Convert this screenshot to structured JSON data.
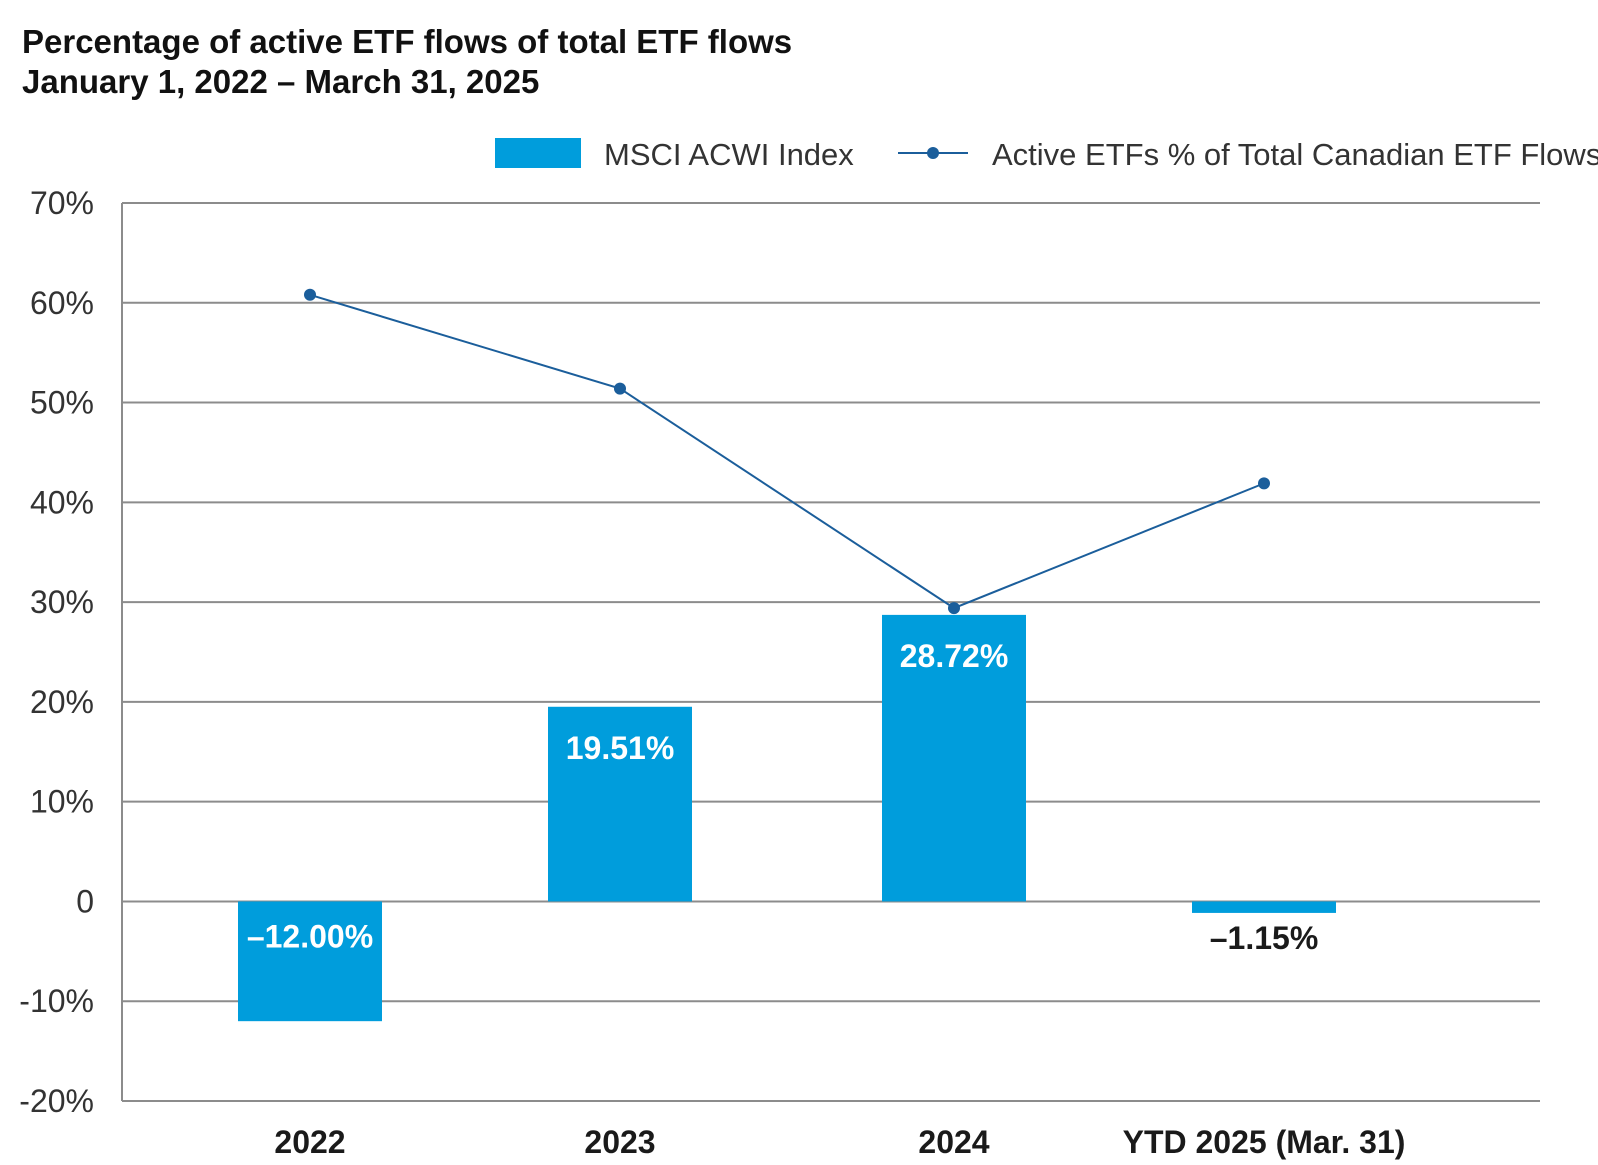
{
  "chart_data": {
    "type": "bar",
    "title": "Percentage of active ETF flows of total ETF flows",
    "subtitle": "January 1, 2022 – March 31, 2025",
    "categories": [
      "2022",
      "2023",
      "2024",
      "YTD 2025 (Mar. 31)"
    ],
    "series": [
      {
        "name": "MSCI ACWI Index",
        "type": "bar",
        "color": "#009ddc",
        "values": [
          -12.0,
          19.51,
          28.72,
          -1.15
        ],
        "labels": [
          "–12.00%",
          "19.51%",
          "28.72%",
          "–1.15%"
        ]
      },
      {
        "name": "Active ETFs % of Total Canadian ETF Flows",
        "type": "line",
        "color": "#1b5e9b",
        "values": [
          60.8,
          51.4,
          29.4,
          41.9
        ]
      }
    ],
    "yticks": [
      "70%",
      "60%",
      "50%",
      "40%",
      "30%",
      "20%",
      "10%",
      "0",
      "-10%",
      "-20%"
    ],
    "ylim": [
      -20,
      70
    ],
    "xlabel": "",
    "ylabel": "",
    "grid": true,
    "legend": "top-right"
  }
}
